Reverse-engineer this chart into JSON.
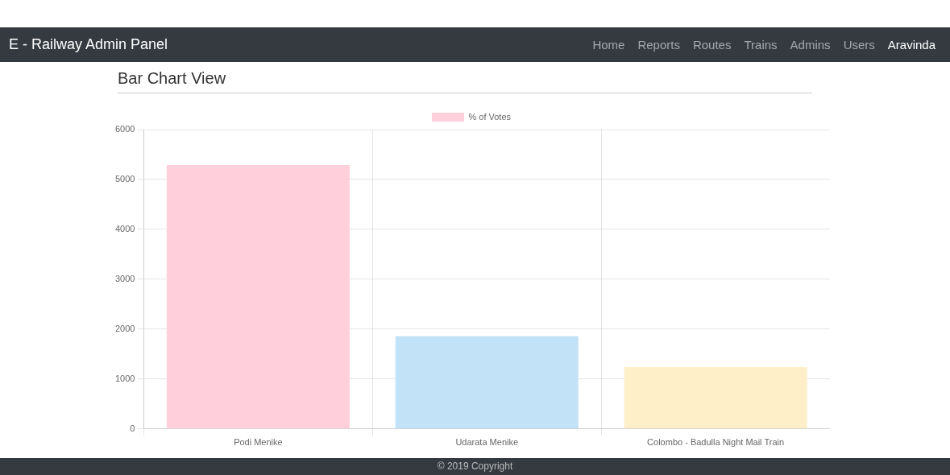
{
  "chart_data": {
    "type": "bar",
    "title": "Bar Chart View",
    "categories": [
      "Podi Menike",
      "Udarata Menike",
      "Colombo - Badulla Night Mail Train"
    ],
    "series": [
      {
        "name": "% of Votes",
        "colors": [
          "#ffd0dc",
          "#c2e2f7",
          "#feefc8"
        ],
        "values": [
          5290,
          1860,
          1240
        ]
      }
    ],
    "ylim": [
      0,
      6000
    ],
    "yticks": [
      0,
      1000,
      2000,
      3000,
      4000,
      5000,
      6000
    ],
    "grid": true,
    "legend": "top",
    "annotations": [
      "E - Railway Admin Panel",
      "Home",
      "Reports",
      "Routes",
      "Trains",
      "Admins",
      "Users",
      "Aravinda",
      "© 2019 Copyright"
    ]
  }
}
